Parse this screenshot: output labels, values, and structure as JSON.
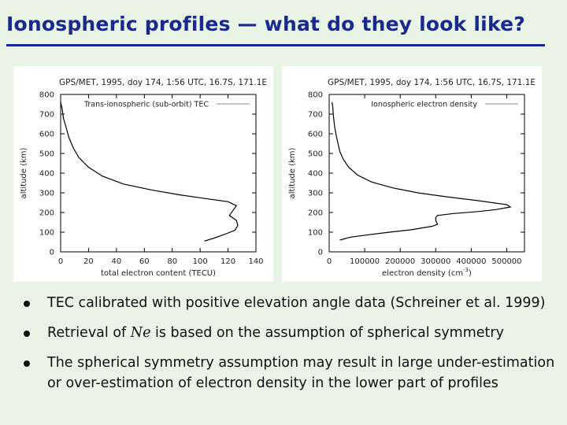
{
  "slide": {
    "title": "Ionospheric profiles — what do they look like?"
  },
  "bullets": [
    {
      "text": "TEC calibrated with positive elevation angle data (Schreiner et al. 1999)"
    },
    {
      "pre": "Retrieval of ",
      "symbol": "Ne",
      "post": " is based on the assumption of spherical symmetry"
    },
    {
      "text": "The spherical symmetry assumption may result in large under-estimation or over-estimation of electron density in the lower part of profiles"
    }
  ],
  "chart_data": [
    {
      "type": "line",
      "title": "GPS/MET, 1995, doy 174, 1:56 UTC, 16.7S, 171.1E",
      "xlabel": "total electron content (TECU)",
      "ylabel": "altitude (km)",
      "xlim": [
        0,
        140
      ],
      "ylim": [
        0,
        800
      ],
      "xticks": [
        "0",
        "20",
        "40",
        "60",
        "80",
        "100",
        "120",
        "140"
      ],
      "yticks": [
        "0",
        "100",
        "200",
        "300",
        "400",
        "500",
        "600",
        "700",
        "800"
      ],
      "legend_position": "top-right",
      "series": [
        {
          "name": "Trans-ionospheric (sub-orbit) TEC",
          "color": "#000000",
          "points": [
            [
              103,
              55
            ],
            [
              110,
              70
            ],
            [
              118,
              90
            ],
            [
              125,
              110
            ],
            [
              127,
              135
            ],
            [
              126,
              160
            ],
            [
              121,
              185
            ],
            [
              124,
              215
            ],
            [
              126,
              235
            ],
            [
              120,
              255
            ],
            [
              100,
              275
            ],
            [
              85,
              290
            ],
            [
              65,
              315
            ],
            [
              45,
              345
            ],
            [
              30,
              385
            ],
            [
              20,
              430
            ],
            [
              13,
              480
            ],
            [
              9,
              530
            ],
            [
              6,
              580
            ],
            [
              4,
              630
            ],
            [
              2,
              680
            ],
            [
              1,
              730
            ],
            [
              0,
              760
            ]
          ]
        }
      ]
    },
    {
      "type": "line",
      "title": "GPS/MET, 1995, doy 174, 1:56 UTC, 16.7S, 171.1E",
      "xlabel": "electron density (cm^-3)",
      "ylabel": "altitude (km)",
      "xlim": [
        0,
        550000
      ],
      "ylim": [
        0,
        800
      ],
      "xticks": [
        "0",
        "100000",
        "200000",
        "300000",
        "400000",
        "500000"
      ],
      "yticks": [
        "0",
        "100",
        "200",
        "300",
        "400",
        "500",
        "600",
        "700",
        "800"
      ],
      "legend_position": "top-right",
      "series": [
        {
          "name": "Ionospheric electron density",
          "color": "#000000",
          "points": [
            [
              30000,
              60
            ],
            [
              60000,
              75
            ],
            [
              110000,
              87
            ],
            [
              170000,
              100
            ],
            [
              230000,
              112
            ],
            [
              290000,
              130
            ],
            [
              305000,
              140
            ],
            [
              300000,
              160
            ],
            [
              300000,
              175
            ],
            [
              305000,
              185
            ],
            [
              350000,
              195
            ],
            [
              420000,
              205
            ],
            [
              470000,
              215
            ],
            [
              510000,
              228
            ],
            [
              500000,
              240
            ],
            [
              420000,
              260
            ],
            [
              330000,
              280
            ],
            [
              250000,
              300
            ],
            [
              180000,
              325
            ],
            [
              120000,
              355
            ],
            [
              80000,
              390
            ],
            [
              55000,
              430
            ],
            [
              40000,
              470
            ],
            [
              30000,
              510
            ],
            [
              25000,
              550
            ],
            [
              20000,
              590
            ],
            [
              15000,
              640
            ],
            [
              12000,
              690
            ],
            [
              10000,
              740
            ],
            [
              8000,
              760
            ]
          ]
        }
      ]
    }
  ]
}
